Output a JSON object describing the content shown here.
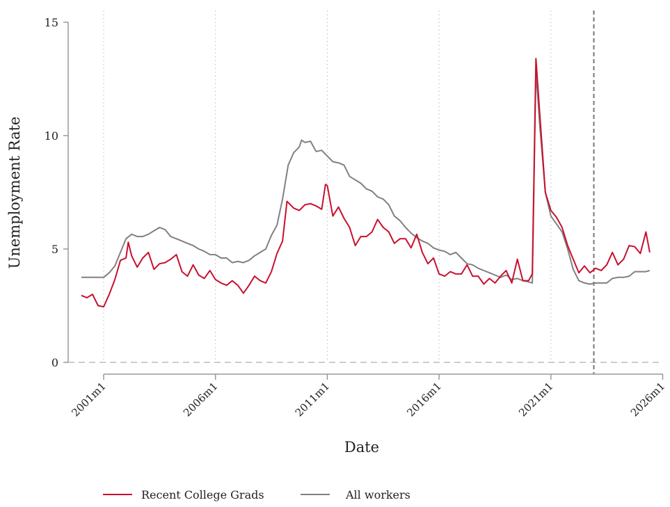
{
  "chart_data": {
    "type": "line",
    "title": "",
    "xlabel": "Date",
    "ylabel": "Unemployment Rate",
    "xlim": [
      2000.0,
      2026.0
    ],
    "ylim": [
      0,
      15
    ],
    "x_ticks": [
      {
        "value": 2001,
        "label": "2001m1"
      },
      {
        "value": 2006,
        "label": "2006m1"
      },
      {
        "value": 2011,
        "label": "2011m1"
      },
      {
        "value": 2016,
        "label": "2016m1"
      },
      {
        "value": 2021,
        "label": "2021m1"
      },
      {
        "value": 2026,
        "label": "2026m1"
      }
    ],
    "y_ticks": [
      {
        "value": 0,
        "label": "0"
      },
      {
        "value": 5,
        "label": "5"
      },
      {
        "value": 10,
        "label": "10"
      },
      {
        "value": 15,
        "label": "15"
      }
    ],
    "grid": "vertical dotted at x ticks",
    "zero_line": {
      "y": 0,
      "style": "dashed"
    },
    "reference_line": {
      "x": 2022.92,
      "style": "dashed"
    },
    "legend_position": "bottom",
    "series": [
      {
        "name": "Recent College Grads",
        "color": "#c8102e",
        "points": [
          [
            2000.0,
            2.95
          ],
          [
            2000.25,
            2.85
          ],
          [
            2000.5,
            3.0
          ],
          [
            2000.75,
            2.5
          ],
          [
            2001.0,
            2.45
          ],
          [
            2001.25,
            3.0
          ],
          [
            2001.5,
            3.65
          ],
          [
            2001.75,
            4.5
          ],
          [
            2002.0,
            4.6
          ],
          [
            2002.1,
            5.3
          ],
          [
            2002.25,
            4.7
          ],
          [
            2002.5,
            4.2
          ],
          [
            2002.75,
            4.6
          ],
          [
            2003.0,
            4.85
          ],
          [
            2003.25,
            4.1
          ],
          [
            2003.5,
            4.35
          ],
          [
            2003.75,
            4.4
          ],
          [
            2004.0,
            4.55
          ],
          [
            2004.25,
            4.75
          ],
          [
            2004.5,
            4.0
          ],
          [
            2004.75,
            3.8
          ],
          [
            2005.0,
            4.3
          ],
          [
            2005.25,
            3.85
          ],
          [
            2005.5,
            3.7
          ],
          [
            2005.75,
            4.05
          ],
          [
            2006.0,
            3.65
          ],
          [
            2006.25,
            3.5
          ],
          [
            2006.5,
            3.4
          ],
          [
            2006.75,
            3.6
          ],
          [
            2007.0,
            3.4
          ],
          [
            2007.25,
            3.05
          ],
          [
            2007.5,
            3.4
          ],
          [
            2007.75,
            3.8
          ],
          [
            2008.0,
            3.6
          ],
          [
            2008.25,
            3.5
          ],
          [
            2008.5,
            4.0
          ],
          [
            2008.75,
            4.8
          ],
          [
            2009.0,
            5.35
          ],
          [
            2009.2,
            7.1
          ],
          [
            2009.5,
            6.8
          ],
          [
            2009.75,
            6.7
          ],
          [
            2010.0,
            6.95
          ],
          [
            2010.25,
            7.0
          ],
          [
            2010.5,
            6.9
          ],
          [
            2010.75,
            6.75
          ],
          [
            2010.92,
            7.85
          ],
          [
            2011.0,
            7.8
          ],
          [
            2011.25,
            6.45
          ],
          [
            2011.5,
            6.85
          ],
          [
            2011.75,
            6.35
          ],
          [
            2012.0,
            5.95
          ],
          [
            2012.25,
            5.15
          ],
          [
            2012.5,
            5.55
          ],
          [
            2012.75,
            5.55
          ],
          [
            2013.0,
            5.75
          ],
          [
            2013.25,
            6.3
          ],
          [
            2013.5,
            5.95
          ],
          [
            2013.75,
            5.75
          ],
          [
            2014.0,
            5.25
          ],
          [
            2014.25,
            5.45
          ],
          [
            2014.5,
            5.45
          ],
          [
            2014.75,
            5.05
          ],
          [
            2015.0,
            5.65
          ],
          [
            2015.25,
            4.85
          ],
          [
            2015.5,
            4.35
          ],
          [
            2015.75,
            4.6
          ],
          [
            2016.0,
            3.9
          ],
          [
            2016.25,
            3.8
          ],
          [
            2016.5,
            4.0
          ],
          [
            2016.75,
            3.9
          ],
          [
            2017.0,
            3.9
          ],
          [
            2017.25,
            4.3
          ],
          [
            2017.5,
            3.8
          ],
          [
            2017.75,
            3.8
          ],
          [
            2018.0,
            3.45
          ],
          [
            2018.25,
            3.7
          ],
          [
            2018.5,
            3.5
          ],
          [
            2018.75,
            3.8
          ],
          [
            2019.0,
            4.05
          ],
          [
            2019.25,
            3.5
          ],
          [
            2019.5,
            4.55
          ],
          [
            2019.75,
            3.6
          ],
          [
            2020.0,
            3.6
          ],
          [
            2020.17,
            3.9
          ],
          [
            2020.33,
            13.4
          ],
          [
            2020.5,
            11.0
          ],
          [
            2020.75,
            7.5
          ],
          [
            2021.0,
            6.7
          ],
          [
            2021.25,
            6.4
          ],
          [
            2021.5,
            5.95
          ],
          [
            2021.75,
            5.15
          ],
          [
            2022.0,
            4.55
          ],
          [
            2022.25,
            3.95
          ],
          [
            2022.5,
            4.25
          ],
          [
            2022.75,
            3.95
          ],
          [
            2023.0,
            4.15
          ],
          [
            2023.25,
            4.05
          ],
          [
            2023.5,
            4.3
          ],
          [
            2023.75,
            4.85
          ],
          [
            2024.0,
            4.3
          ],
          [
            2024.25,
            4.55
          ],
          [
            2024.5,
            5.15
          ],
          [
            2024.75,
            5.1
          ],
          [
            2025.0,
            4.8
          ],
          [
            2025.25,
            5.75
          ],
          [
            2025.42,
            4.85
          ]
        ]
      },
      {
        "name": "All workers",
        "color": "#808080",
        "points": [
          [
            2000.0,
            3.75
          ],
          [
            2000.5,
            3.75
          ],
          [
            2001.0,
            3.75
          ],
          [
            2001.25,
            3.95
          ],
          [
            2001.5,
            4.25
          ],
          [
            2001.75,
            4.85
          ],
          [
            2002.0,
            5.45
          ],
          [
            2002.25,
            5.65
          ],
          [
            2002.5,
            5.55
          ],
          [
            2002.75,
            5.55
          ],
          [
            2003.0,
            5.65
          ],
          [
            2003.25,
            5.8
          ],
          [
            2003.5,
            5.95
          ],
          [
            2003.75,
            5.85
          ],
          [
            2004.0,
            5.55
          ],
          [
            2004.25,
            5.45
          ],
          [
            2004.5,
            5.35
          ],
          [
            2004.75,
            5.25
          ],
          [
            2005.0,
            5.15
          ],
          [
            2005.25,
            5.0
          ],
          [
            2005.5,
            4.9
          ],
          [
            2005.75,
            4.75
          ],
          [
            2006.0,
            4.75
          ],
          [
            2006.25,
            4.6
          ],
          [
            2006.5,
            4.6
          ],
          [
            2006.75,
            4.4
          ],
          [
            2007.0,
            4.45
          ],
          [
            2007.25,
            4.4
          ],
          [
            2007.5,
            4.5
          ],
          [
            2007.75,
            4.7
          ],
          [
            2008.0,
            4.85
          ],
          [
            2008.25,
            5.0
          ],
          [
            2008.5,
            5.6
          ],
          [
            2008.75,
            6.05
          ],
          [
            2009.0,
            7.2
          ],
          [
            2009.25,
            8.7
          ],
          [
            2009.5,
            9.25
          ],
          [
            2009.75,
            9.5
          ],
          [
            2009.85,
            9.8
          ],
          [
            2010.0,
            9.7
          ],
          [
            2010.25,
            9.75
          ],
          [
            2010.5,
            9.3
          ],
          [
            2010.75,
            9.35
          ],
          [
            2011.0,
            9.1
          ],
          [
            2011.25,
            8.85
          ],
          [
            2011.5,
            8.8
          ],
          [
            2011.75,
            8.7
          ],
          [
            2012.0,
            8.2
          ],
          [
            2012.25,
            8.05
          ],
          [
            2012.5,
            7.9
          ],
          [
            2012.75,
            7.65
          ],
          [
            2013.0,
            7.55
          ],
          [
            2013.25,
            7.3
          ],
          [
            2013.5,
            7.2
          ],
          [
            2013.75,
            6.95
          ],
          [
            2014.0,
            6.45
          ],
          [
            2014.25,
            6.25
          ],
          [
            2014.5,
            5.95
          ],
          [
            2014.75,
            5.7
          ],
          [
            2015.0,
            5.5
          ],
          [
            2015.25,
            5.35
          ],
          [
            2015.5,
            5.25
          ],
          [
            2015.75,
            5.05
          ],
          [
            2016.0,
            4.95
          ],
          [
            2016.25,
            4.9
          ],
          [
            2016.5,
            4.75
          ],
          [
            2016.75,
            4.85
          ],
          [
            2017.0,
            4.6
          ],
          [
            2017.25,
            4.35
          ],
          [
            2017.5,
            4.3
          ],
          [
            2017.75,
            4.15
          ],
          [
            2018.0,
            4.05
          ],
          [
            2018.25,
            3.95
          ],
          [
            2018.5,
            3.85
          ],
          [
            2018.75,
            3.75
          ],
          [
            2019.0,
            3.85
          ],
          [
            2019.25,
            3.65
          ],
          [
            2019.5,
            3.7
          ],
          [
            2019.75,
            3.6
          ],
          [
            2020.0,
            3.55
          ],
          [
            2020.17,
            3.5
          ],
          [
            2020.33,
            12.9
          ],
          [
            2020.5,
            10.5
          ],
          [
            2020.75,
            7.5
          ],
          [
            2021.0,
            6.45
          ],
          [
            2021.25,
            6.1
          ],
          [
            2021.5,
            5.75
          ],
          [
            2021.75,
            5.0
          ],
          [
            2022.0,
            4.1
          ],
          [
            2022.25,
            3.6
          ],
          [
            2022.5,
            3.5
          ],
          [
            2022.75,
            3.45
          ],
          [
            2023.0,
            3.5
          ],
          [
            2023.25,
            3.5
          ],
          [
            2023.5,
            3.5
          ],
          [
            2023.75,
            3.7
          ],
          [
            2024.0,
            3.75
          ],
          [
            2024.25,
            3.75
          ],
          [
            2024.5,
            3.8
          ],
          [
            2024.75,
            4.0
          ],
          [
            2025.0,
            4.0
          ],
          [
            2025.25,
            4.0
          ],
          [
            2025.42,
            4.05
          ]
        ]
      }
    ]
  }
}
